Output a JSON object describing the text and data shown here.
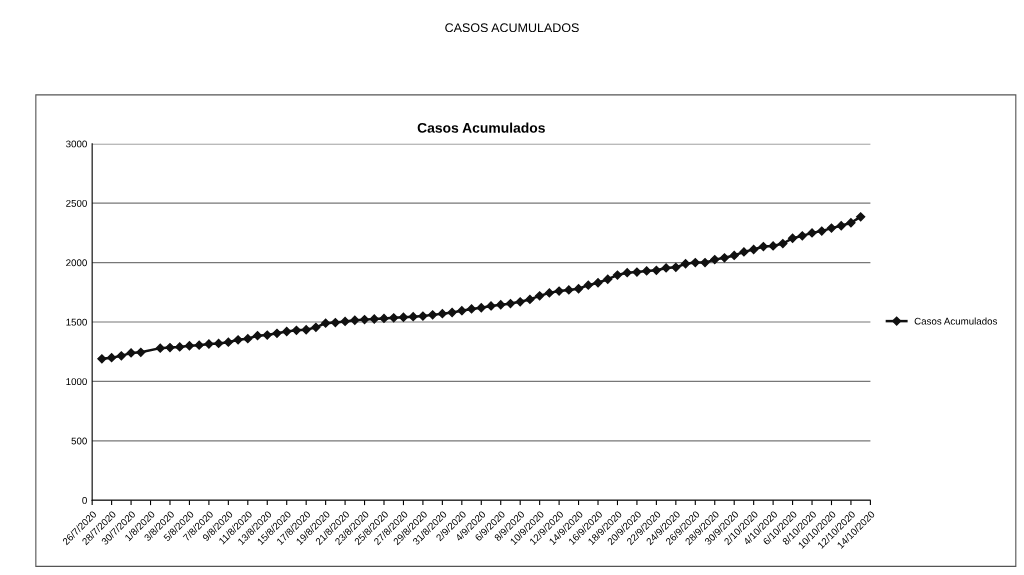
{
  "chart_data": {
    "type": "line",
    "title": "CASOS ACUMULADOS",
    "subtitle": "Casos Acumulados",
    "x": [
      "2020-07-27",
      "2020-07-28",
      "2020-07-29",
      "2020-07-30",
      "2020-07-31",
      "2020-08-02",
      "2020-08-03",
      "2020-08-04",
      "2020-08-05",
      "2020-08-06",
      "2020-08-07",
      "2020-08-08",
      "2020-08-09",
      "2020-08-10",
      "2020-08-11",
      "2020-08-12",
      "2020-08-13",
      "2020-08-14",
      "2020-08-15",
      "2020-08-16",
      "2020-08-17",
      "2020-08-18",
      "2020-08-19",
      "2020-08-20",
      "2020-08-21",
      "2020-08-22",
      "2020-08-23",
      "2020-08-24",
      "2020-08-25",
      "2020-08-26",
      "2020-08-27",
      "2020-08-28",
      "2020-08-29",
      "2020-08-30",
      "2020-08-31",
      "2020-09-01",
      "2020-09-02",
      "2020-09-03",
      "2020-09-04",
      "2020-09-05",
      "2020-09-06",
      "2020-09-07",
      "2020-09-08",
      "2020-09-09",
      "2020-09-10",
      "2020-09-11",
      "2020-09-12",
      "2020-09-13",
      "2020-09-14",
      "2020-09-15",
      "2020-09-16",
      "2020-09-17",
      "2020-09-18",
      "2020-09-19",
      "2020-09-20",
      "2020-09-21",
      "2020-09-22",
      "2020-09-23",
      "2020-09-24",
      "2020-09-25",
      "2020-09-26",
      "2020-09-27",
      "2020-09-28",
      "2020-09-29",
      "2020-09-30",
      "2020-10-01",
      "2020-10-02",
      "2020-10-03",
      "2020-10-04",
      "2020-10-05",
      "2020-10-06",
      "2020-10-07",
      "2020-10-08",
      "2020-10-09",
      "2020-10-10",
      "2020-10-11",
      "2020-10-12",
      "2020-10-13"
    ],
    "series": [
      {
        "name": "Casos Acumulados",
        "color": "#111111",
        "values": [
          1190,
          1200,
          1215,
          1240,
          1245,
          1280,
          1285,
          1290,
          1300,
          1305,
          1315,
          1320,
          1330,
          1350,
          1360,
          1385,
          1390,
          1405,
          1420,
          1430,
          1435,
          1455,
          1490,
          1495,
          1505,
          1515,
          1520,
          1525,
          1530,
          1535,
          1540,
          1545,
          1550,
          1560,
          1570,
          1580,
          1595,
          1610,
          1620,
          1635,
          1645,
          1655,
          1670,
          1690,
          1720,
          1745,
          1760,
          1770,
          1780,
          1810,
          1830,
          1860,
          1895,
          1915,
          1920,
          1930,
          1935,
          1955,
          1960,
          1990,
          2000,
          2000,
          2025,
          2040,
          2060,
          2090,
          2110,
          2135,
          2140,
          2160,
          2205,
          2225,
          2250,
          2265,
          2290,
          2310,
          2335,
          2385
        ]
      }
    ],
    "xlim": [
      "2020-07-26",
      "2020-10-14"
    ],
    "xticks": [
      {
        "value": "2020-07-26",
        "label": "26/7/2020"
      },
      {
        "value": "2020-07-28",
        "label": "28/7/2020"
      },
      {
        "value": "2020-07-30",
        "label": "30/7/2020"
      },
      {
        "value": "2020-08-01",
        "label": "1/8/2020"
      },
      {
        "value": "2020-08-03",
        "label": "3/8/2020"
      },
      {
        "value": "2020-08-05",
        "label": "5/8/2020"
      },
      {
        "value": "2020-08-07",
        "label": "7/8/2020"
      },
      {
        "value": "2020-08-09",
        "label": "9/8/2020"
      },
      {
        "value": "2020-08-11",
        "label": "11/8/2020"
      },
      {
        "value": "2020-08-13",
        "label": "13/8/2020"
      },
      {
        "value": "2020-08-15",
        "label": "15/8/2020"
      },
      {
        "value": "2020-08-17",
        "label": "17/8/2020"
      },
      {
        "value": "2020-08-19",
        "label": "19/8/2020"
      },
      {
        "value": "2020-08-21",
        "label": "21/8/2020"
      },
      {
        "value": "2020-08-23",
        "label": "23/8/2020"
      },
      {
        "value": "2020-08-25",
        "label": "25/8/2020"
      },
      {
        "value": "2020-08-27",
        "label": "27/8/2020"
      },
      {
        "value": "2020-08-29",
        "label": "29/8/2020"
      },
      {
        "value": "2020-08-31",
        "label": "31/8/2020"
      },
      {
        "value": "2020-09-02",
        "label": "2/9/2020"
      },
      {
        "value": "2020-09-04",
        "label": "4/9/2020"
      },
      {
        "value": "2020-09-06",
        "label": "6/9/2020"
      },
      {
        "value": "2020-09-08",
        "label": "8/9/2020"
      },
      {
        "value": "2020-09-10",
        "label": "10/9/2020"
      },
      {
        "value": "2020-09-12",
        "label": "12/9/2020"
      },
      {
        "value": "2020-09-14",
        "label": "14/9/2020"
      },
      {
        "value": "2020-09-16",
        "label": "16/9/2020"
      },
      {
        "value": "2020-09-18",
        "label": "18/9/2020"
      },
      {
        "value": "2020-09-20",
        "label": "20/9/2020"
      },
      {
        "value": "2020-09-22",
        "label": "22/9/2020"
      },
      {
        "value": "2020-09-24",
        "label": "24/9/2020"
      },
      {
        "value": "2020-09-26",
        "label": "26/9/2020"
      },
      {
        "value": "2020-09-28",
        "label": "28/9/2020"
      },
      {
        "value": "2020-09-30",
        "label": "30/9/2020"
      },
      {
        "value": "2020-10-02",
        "label": "2/10/2020"
      },
      {
        "value": "2020-10-04",
        "label": "4/10/2020"
      },
      {
        "value": "2020-10-06",
        "label": "6/10/2020"
      },
      {
        "value": "2020-10-08",
        "label": "8/10/2020"
      },
      {
        "value": "2020-10-10",
        "label": "10/10/2020"
      },
      {
        "value": "2020-10-12",
        "label": "12/10/2020"
      },
      {
        "value": "2020-10-14",
        "label": "14/10/2020"
      }
    ],
    "ylim": [
      0,
      3000
    ],
    "yticks": [
      0,
      500,
      1000,
      1500,
      2000,
      2500,
      3000
    ],
    "grid": "y",
    "legend": "right",
    "marker": "diamond",
    "line_style": "solid"
  }
}
